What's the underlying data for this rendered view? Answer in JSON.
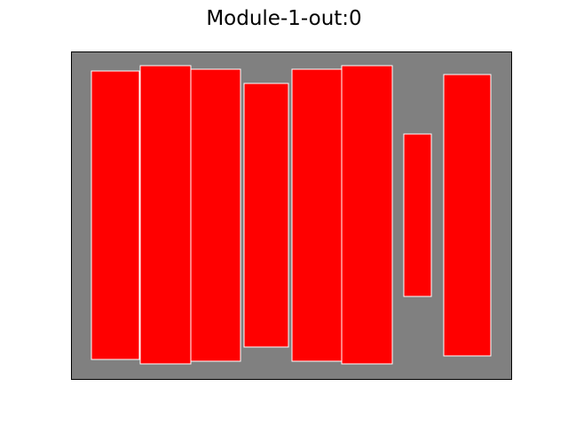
{
  "figure": {
    "title": "Module-1-out:0"
  },
  "colors": {
    "panel_background": "#808080",
    "panel_border": "#000000",
    "rect_fill": "#ff0000",
    "rect_stroke": "#ffffff"
  },
  "rectangles": [
    {
      "id": "rect-1"
    },
    {
      "id": "rect-2"
    },
    {
      "id": "rect-3"
    },
    {
      "id": "rect-4"
    },
    {
      "id": "rect-5"
    },
    {
      "id": "rect-6"
    },
    {
      "id": "rect-7"
    },
    {
      "id": "rect-8"
    }
  ]
}
